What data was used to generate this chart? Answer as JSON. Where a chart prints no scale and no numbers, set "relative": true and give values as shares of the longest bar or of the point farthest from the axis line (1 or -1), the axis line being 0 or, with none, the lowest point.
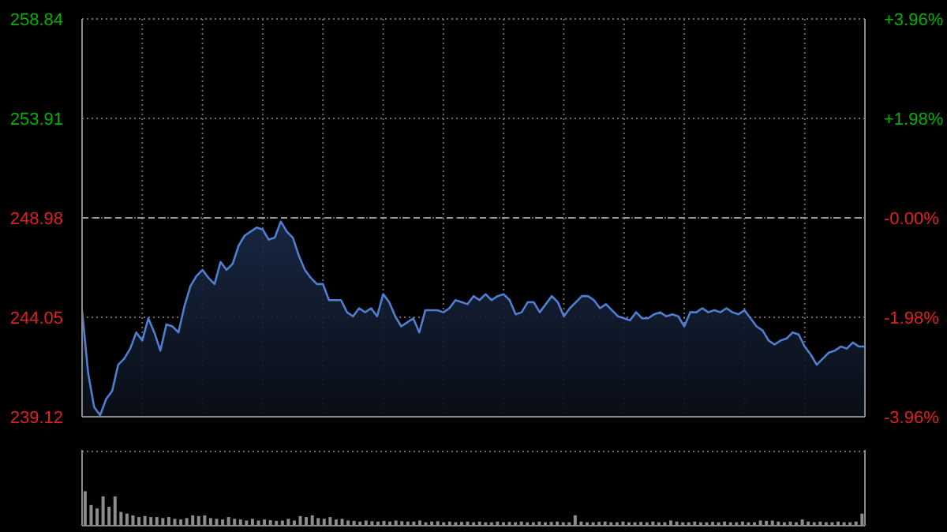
{
  "chart_data": [
    {
      "type": "area",
      "categories": [
        null,
        null,
        null,
        null,
        null,
        null,
        null,
        null,
        null,
        null,
        null,
        null,
        null,
        null,
        null,
        null,
        null,
        null,
        null,
        null,
        null,
        null,
        null,
        null,
        null,
        null,
        null,
        null,
        null,
        null,
        null,
        null,
        null,
        null,
        null,
        null,
        null,
        null,
        null,
        null,
        null,
        null,
        null,
        null,
        null,
        null,
        null,
        null,
        null,
        null,
        null,
        null,
        null,
        null,
        null,
        null,
        null,
        null,
        null,
        null,
        null,
        null,
        null,
        null,
        null,
        null,
        null,
        null,
        null,
        null,
        null,
        null,
        null,
        null,
        null,
        null,
        null,
        null,
        null,
        null,
        null,
        null,
        null,
        null,
        null,
        null,
        null,
        null,
        null,
        null,
        null,
        null,
        null,
        null,
        null,
        null,
        null,
        null,
        null,
        null,
        null,
        null,
        null,
        null,
        null,
        null,
        null,
        null,
        null,
        null,
        null,
        null,
        null,
        null,
        null,
        null,
        null,
        null,
        null,
        null,
        null,
        null,
        null,
        null,
        null,
        null,
        null,
        null,
        null,
        null,
        null
      ],
      "series": [
        {
          "color": "#4f7fd0",
          "values": [
            244.4,
            241.3,
            239.6,
            239.2,
            240.0,
            240.4,
            241.7,
            242.0,
            242.5,
            243.3,
            242.9,
            244.0,
            243.3,
            242.4,
            243.7,
            243.6,
            243.3,
            244.6,
            245.6,
            246.1,
            246.4,
            246.0,
            245.7,
            246.8,
            246.4,
            246.7,
            247.6,
            248.1,
            248.3,
            248.5,
            248.4,
            247.9,
            248.0,
            248.8,
            248.3,
            248.0,
            247.1,
            246.4,
            246.0,
            245.7,
            245.7,
            244.9,
            244.9,
            244.9,
            244.3,
            244.1,
            244.5,
            244.3,
            244.5,
            244.1,
            245.2,
            244.8,
            244.1,
            243.6,
            243.8,
            244.0,
            243.3,
            244.4,
            244.4,
            244.4,
            244.3,
            244.5,
            244.9,
            244.8,
            244.7,
            245.1,
            244.9,
            245.2,
            244.9,
            245.1,
            245.2,
            244.9,
            244.2,
            244.3,
            244.8,
            244.8,
            244.3,
            244.7,
            245.1,
            244.8,
            244.1,
            244.5,
            244.8,
            245.1,
            245.1,
            244.9,
            244.5,
            244.7,
            244.4,
            244.1,
            244.0,
            243.9,
            244.3,
            244.0,
            244.0,
            244.2,
            244.3,
            244.1,
            244.2,
            244.1,
            243.6,
            244.3,
            244.3,
            244.5,
            244.3,
            244.4,
            244.3,
            244.5,
            244.3,
            244.2,
            244.4,
            244.0,
            243.6,
            243.4,
            242.9,
            242.7,
            242.9,
            243.0,
            243.3,
            243.2,
            242.6,
            242.2,
            241.7,
            242.0,
            242.3,
            242.4,
            242.6,
            242.5,
            242.8,
            242.6,
            242.6
          ]
        }
      ],
      "ylim": [
        239.12,
        258.84
      ],
      "yticks": [
        239.12,
        244.05,
        248.98,
        253.91,
        258.84
      ],
      "y2lim": [
        -3.96,
        3.96
      ],
      "y2ticks": [
        {
          "value": -3.96,
          "label": "-3.96%"
        },
        {
          "value": -1.98,
          "label": "-1.98%"
        },
        {
          "value": 0,
          "label": "-0.00%"
        },
        {
          "value": 1.98,
          "label": "+1.98%"
        },
        {
          "value": 3.96,
          "label": "+3.96%"
        }
      ],
      "ref_lines": [
        {
          "axis": "y",
          "value": 248.98,
          "line_style": "dashed"
        }
      ],
      "grid": true,
      "line_style": "solid",
      "marker": "none"
    },
    {
      "type": "bar",
      "relative": true,
      "categories": [
        null,
        null,
        null,
        null,
        null,
        null,
        null,
        null,
        null,
        null,
        null,
        null,
        null,
        null,
        null,
        null,
        null,
        null,
        null,
        null,
        null,
        null,
        null,
        null,
        null,
        null,
        null,
        null,
        null,
        null,
        null,
        null,
        null,
        null,
        null,
        null,
        null,
        null,
        null,
        null,
        null,
        null,
        null,
        null,
        null,
        null,
        null,
        null,
        null,
        null,
        null,
        null,
        null,
        null,
        null,
        null,
        null,
        null,
        null,
        null,
        null,
        null,
        null,
        null,
        null,
        null,
        null,
        null,
        null,
        null,
        null,
        null,
        null,
        null,
        null,
        null,
        null,
        null,
        null,
        null,
        null,
        null,
        null,
        null,
        null,
        null,
        null,
        null,
        null,
        null,
        null,
        null,
        null,
        null,
        null,
        null,
        null,
        null,
        null,
        null,
        null,
        null,
        null,
        null,
        null,
        null,
        null,
        null,
        null,
        null,
        null,
        null,
        null,
        null,
        null,
        null,
        null,
        null,
        null,
        null,
        null,
        null,
        null,
        null,
        null,
        null,
        null,
        null,
        null,
        null,
        null
      ],
      "series": [
        {
          "color": "#8c8c8c",
          "values": [
            1.0,
            0.6,
            0.5,
            0.85,
            0.55,
            0.85,
            0.4,
            0.35,
            0.3,
            0.25,
            0.28,
            0.25,
            0.25,
            0.22,
            0.25,
            0.2,
            0.18,
            0.22,
            0.3,
            0.28,
            0.3,
            0.22,
            0.2,
            0.18,
            0.25,
            0.2,
            0.18,
            0.15,
            0.2,
            0.15,
            0.18,
            0.16,
            0.14,
            0.15,
            0.2,
            0.15,
            0.28,
            0.25,
            0.3,
            0.22,
            0.2,
            0.25,
            0.18,
            0.2,
            0.15,
            0.14,
            0.12,
            0.15,
            0.13,
            0.12,
            0.14,
            0.12,
            0.15,
            0.13,
            0.12,
            0.12,
            0.15,
            0.1,
            0.12,
            0.13,
            0.1,
            0.12,
            0.1,
            0.11,
            0.12,
            0.1,
            0.12,
            0.1,
            0.1,
            0.12,
            0.1,
            0.11,
            0.1,
            0.12,
            0.1,
            0.1,
            0.12,
            0.1,
            0.11,
            0.12,
            0.1,
            0.1,
            0.3,
            0.12,
            0.1,
            0.1,
            0.11,
            0.12,
            0.1,
            0.1,
            0.12,
            0.1,
            0.1,
            0.11,
            0.1,
            0.12,
            0.1,
            0.1,
            0.15,
            0.12,
            0.1,
            0.1,
            0.12,
            0.1,
            0.1,
            0.11,
            0.1,
            0.12,
            0.1,
            0.1,
            0.12,
            0.1,
            0.1,
            0.15,
            0.14,
            0.15,
            0.12,
            0.1,
            0.12,
            0.1,
            0.18,
            0.12,
            0.1,
            0.12,
            0.1,
            0.1,
            0.12,
            0.1,
            0.1,
            0.12,
            0.35
          ]
        }
      ]
    }
  ]
}
